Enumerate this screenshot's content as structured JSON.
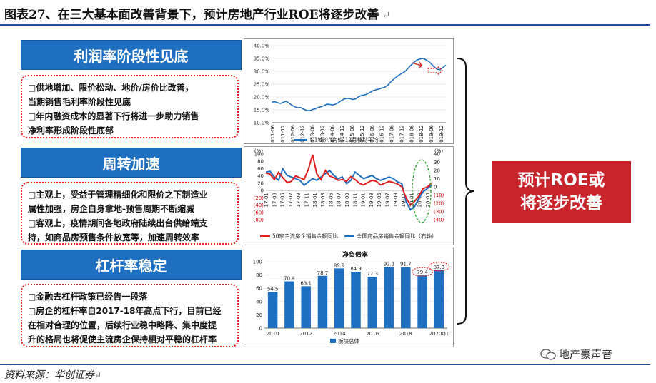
{
  "header": {
    "title": "图表27、在三大基本面改善背景下，预计房地产行业ROE将逐步改善",
    "return_glyph": "↵"
  },
  "sections": [
    {
      "heading": "利润率阶段性见底",
      "bullets": [
        "□供地增加、限价松动、地价/房价比改善，",
        "当期销售毛利率阶段性见底",
        "□年内融资成本的显著下行将进一步助力销售",
        "净利率形成阶段性底部"
      ]
    },
    {
      "heading": "周转加速",
      "bullets": [
        "□主观上，受益于管理精细化和限价之下制造业",
        "属性加强，房企自身拿地-预售周期不断缩减",
        "□客观上，疫情期间各地政府陆续出台供给端支",
        "持，如商品房预售条件放宽等，加速周转效率"
      ]
    },
    {
      "heading": "杠杆率稳定",
      "bullets": [
        "□金融去杠杆政策已经告一段落",
        "□房企的杠杆率自2017-18年高点下行，目前已经",
        "在相对合理的位置，后续行业稳中略降、集中度提",
        "升的格局也将促使主流房企保持相对平稳的杠杆率"
      ]
    }
  ],
  "conclusion": {
    "line1": "预计ROE或",
    "line2": "将逐步改善"
  },
  "source": "资料来源：华创证券",
  "watermark": "地产豪声音",
  "chart_data": [
    {
      "type": "line",
      "y_ticks": [
        "40.0%",
        "35.0%",
        "30.0%",
        "25.0%",
        "20.0%",
        "15.0%",
        "10.0%"
      ],
      "ylim": [
        10,
        40
      ],
      "x_ticks": [
        "2011-06",
        "2011-12",
        "2012-06",
        "2012-12",
        "2013-06",
        "2013-12",
        "2014-06",
        "2014-12",
        "2015-06",
        "2015-12",
        "2016-06",
        "2016-12",
        "2017-06",
        "2017-12",
        "2018-06",
        "2018-12",
        "2019-06",
        "2019-12"
      ],
      "series": [
        {
          "name": "t-1地价/t房价-12月移动平均",
          "color": "#1f6fc0",
          "values": [
            18,
            18.2,
            17.8,
            17.5,
            17.9,
            18.4,
            17.6,
            16.8,
            16.2,
            15.8,
            15.9,
            15.3,
            14.8,
            14.6,
            15.1,
            15.4,
            15.9,
            16.2,
            16.6,
            17.2,
            17.1,
            16.9,
            17.2,
            17.8,
            18.6,
            19.2,
            19.5,
            19.4,
            19.0,
            19.3,
            20.1,
            20.6,
            20.8,
            21.2,
            21.9,
            22.5,
            22.8,
            23.1,
            23.5,
            23.8,
            24.6,
            25.8,
            26.9,
            27.8,
            28.6,
            29.3,
            30.0,
            31.2,
            32.4,
            33.5,
            34.3,
            34.8,
            35.0,
            34.6,
            33.9,
            32.9,
            31.7,
            30.8,
            30.6,
            31.5,
            32.4
          ]
        }
      ]
    },
    {
      "type": "line",
      "left_ticks": [
        "(%)",
        "100",
        "80",
        "60",
        "40",
        "20",
        "0",
        "(20)",
        "(40)",
        "(60)",
        "(80)"
      ],
      "right_ticks": [
        "(%)",
        "40",
        "30",
        "20",
        "10",
        "0",
        "(10)",
        "(20)",
        "(30)",
        "(40)"
      ],
      "x_ticks": [
        "17-01",
        "17-03",
        "17-05",
        "17-07",
        "17-09",
        "17-11",
        "18-01",
        "18-03",
        "18-05",
        "18-07",
        "18-09",
        "18-11",
        "19-01",
        "19-03",
        "19-05",
        "19-07",
        "19-09",
        "19-11",
        "20-01",
        "20-03",
        "20-05"
      ],
      "series": [
        {
          "name": "50家主流房企销售金额同比",
          "color": "#e02020",
          "values": [
            48,
            45,
            30,
            50,
            35,
            22,
            25,
            40,
            35,
            30,
            58,
            98,
            45,
            30,
            55,
            40,
            35,
            28,
            30,
            25,
            38,
            30,
            20,
            15,
            22,
            28,
            25,
            15,
            20,
            25,
            22,
            18,
            10,
            -20,
            -40,
            -30,
            -15,
            5,
            10,
            20
          ]
        },
        {
          "name": "全国商品房销售金额同比（右轴）",
          "color": "#1f6fc0",
          "values": [
            18,
            19,
            12,
            8,
            22,
            14,
            12,
            10,
            8,
            2,
            6,
            10,
            8,
            12,
            16,
            20,
            14,
            10,
            12,
            4,
            8,
            18,
            14,
            10,
            12,
            14,
            10,
            8,
            10,
            12,
            10,
            6,
            4,
            -18,
            -28,
            -24,
            -14,
            -6,
            -2,
            2
          ]
        }
      ]
    },
    {
      "type": "bar",
      "title": "净负债率",
      "categories": [
        "2010",
        "2011",
        "2012",
        "2013",
        "2014",
        "2015",
        "2016",
        "2017",
        "2018",
        "2019",
        "2020Q1"
      ],
      "x_ticks": [
        "2010",
        "2012",
        "2014",
        "2016",
        "2018",
        "2020Q1"
      ],
      "y_ticks": [
        "100",
        "80",
        "60",
        "40",
        "20",
        "0"
      ],
      "ylim": [
        0,
        100
      ],
      "series": [
        {
          "name": "板块总体",
          "color": "#1f6fc0",
          "values": [
            54.5,
            70.4,
            63.1,
            78.7,
            89.9,
            84.9,
            77.3,
            92.1,
            91.7,
            79.4,
            87.3
          ]
        }
      ]
    }
  ]
}
